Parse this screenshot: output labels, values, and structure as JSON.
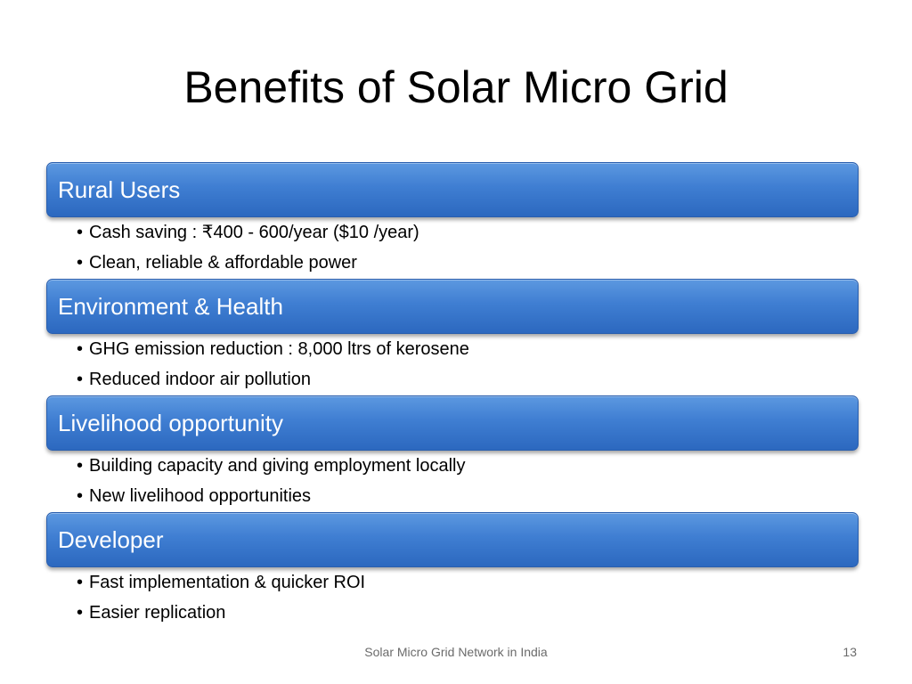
{
  "slide": {
    "title": "Benefits of Solar Micro Grid",
    "sections": [
      {
        "label": "Rural Users",
        "bullets": [
          "Cash saving : ₹400 - 600/year ($10 /year)",
          "Clean, reliable & affordable power"
        ]
      },
      {
        "label": "Environment & Health",
        "bullets": [
          "GHG emission reduction : 8,000 ltrs of kerosene",
          "Reduced indoor air pollution"
        ]
      },
      {
        "label": "Livelihood opportunity",
        "bullets": [
          "Building capacity and giving employment locally",
          "New livelihood opportunities"
        ]
      },
      {
        "label": "Developer",
        "bullets": [
          "Fast implementation & quicker ROI",
          "Easier replication"
        ]
      }
    ],
    "bullet_glyph": "•",
    "footer": "Solar Micro Grid Network in India",
    "page_number": "13",
    "colors": {
      "section_bar": "#3f7ed2",
      "section_text": "#ffffff",
      "footer_text": "#6b6b6b"
    }
  }
}
